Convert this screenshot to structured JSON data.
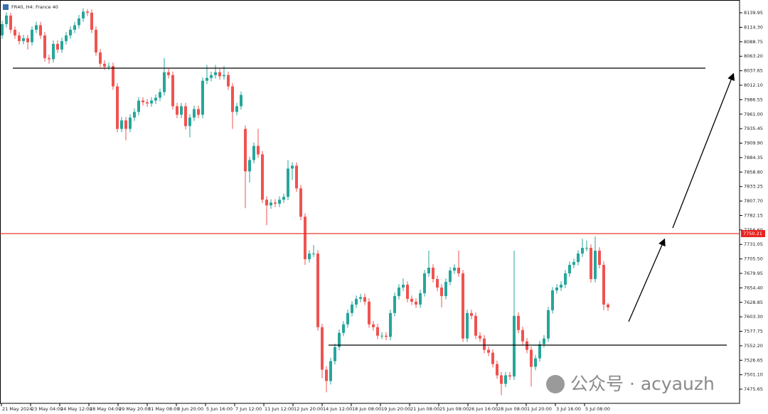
{
  "chart_data": {
    "type": "candlestick",
    "title": "FR40, H4:  France 40",
    "watermark": "公众号 · acyauzh",
    "up_color": "#26a69a",
    "down_color": "#ef5350",
    "ylim": [
      7450.58,
      8162.51
    ],
    "yticks": [
      8139.95,
      {
        "value": 8114.3,
        "label": "8114.30"
      },
      8088.75,
      {
        "value": 8063.2,
        "label": "8063.20"
      },
      8037.65,
      {
        "value": 8012.1,
        "label": "8012.10"
      },
      7986.55,
      {
        "value": 7961.0,
        "label": "7961.00"
      },
      7935.45,
      {
        "value": 7909.9,
        "label": "7909.90"
      },
      7884.35,
      {
        "value": 7858.8,
        "label": "7858.80"
      },
      7833.25,
      {
        "value": 7807.7,
        "label": "7807.70"
      },
      7782.15,
      {
        "value": 7756.6,
        "label": "7756.60"
      },
      7731.05,
      {
        "value": 7705.5,
        "label": "7705.50"
      },
      7679.95,
      {
        "value": 7654.4,
        "label": "7654.40"
      },
      7628.85,
      {
        "value": 7603.3,
        "label": "7603.30"
      },
      7577.75,
      {
        "value": 7552.2,
        "label": "7552.20"
      },
      7526.65,
      {
        "value": 7501.1,
        "label": "7501.10"
      },
      7475.65
    ],
    "x_labels": [
      "21 May 2024",
      "23 May 04:00",
      "24 May 12:00",
      "28 May 04:00",
      "29 May 20:00",
      "31 May 08:00",
      "3 Jun 20:00",
      "5 Jun 16:00",
      "7 Jun 12:00",
      "11 Jun 12:00",
      "12 Jun 20:00",
      "14 Jun 12:00",
      "18 Jun 08:00",
      "19 Jun 20:00",
      "21 Jun 08:00",
      "25 Jun 08:00",
      "26 Jun 16:00",
      "28 Jun 08:00",
      "1 Jul 20:00",
      "3 Jul 16:00",
      "5 Jul 08:00"
    ],
    "price_line": {
      "value": 7750.21,
      "color": "#e8231f"
    },
    "levels": [
      {
        "value": 8042.2,
        "color": "#000000"
      },
      {
        "value": 7553.4,
        "color": "#000000"
      }
    ],
    "ohlc": [
      [
        8100,
        8126,
        8094,
        8120
      ],
      [
        8120,
        8141,
        8114,
        8135
      ],
      [
        8135,
        8140,
        8104,
        8110
      ],
      [
        8110,
        8116,
        8094,
        8100
      ],
      [
        8100,
        8106,
        8084,
        8090
      ],
      [
        8090,
        8101,
        8084,
        8095
      ],
      [
        8095,
        8101,
        8075,
        8088
      ],
      [
        8088,
        8116,
        8082,
        8110
      ],
      [
        8110,
        8124,
        8104,
        8118
      ],
      [
        8118,
        8124,
        8094,
        8100
      ],
      [
        8100,
        8106,
        8054,
        8060
      ],
      [
        8060,
        8066,
        8050,
        8058
      ],
      [
        8058,
        8091,
        8052,
        8085
      ],
      [
        8085,
        8091,
        8069,
        8075
      ],
      [
        8075,
        8096,
        8069,
        8090
      ],
      [
        8090,
        8106,
        8084,
        8100
      ],
      [
        8100,
        8116,
        8094,
        8110
      ],
      [
        8110,
        8124,
        8104,
        8118
      ],
      [
        8118,
        8136,
        8112,
        8130
      ],
      [
        8130,
        8148,
        8124,
        8142
      ],
      [
        8142,
        8146,
        8134,
        8140
      ],
      [
        8140,
        8146,
        8104,
        8110
      ],
      [
        8110,
        8116,
        8064,
        8070
      ],
      [
        8070,
        8076,
        8044,
        8050
      ],
      [
        8050,
        8056,
        8039,
        8045
      ],
      [
        8045,
        8052,
        8039,
        8046
      ],
      [
        8046,
        8052,
        8004,
        8010
      ],
      [
        8010,
        8016,
        7929,
        7935
      ],
      [
        7935,
        7956,
        7929,
        7950
      ],
      [
        7950,
        7956,
        7915,
        7935
      ],
      [
        7935,
        7961,
        7929,
        7955
      ],
      [
        7955,
        7971,
        7949,
        7965
      ],
      [
        7965,
        7991,
        7959,
        7985
      ],
      [
        7985,
        7991,
        7976,
        7982
      ],
      [
        7982,
        7988,
        7974,
        7980
      ],
      [
        7980,
        7991,
        7974,
        7985
      ],
      [
        7985,
        7996,
        7979,
        7990
      ],
      [
        7990,
        8006,
        7984,
        8000
      ],
      [
        8000,
        8060,
        7994,
        8035
      ],
      [
        8035,
        8041,
        8024,
        8030
      ],
      [
        8030,
        8036,
        7969,
        7975
      ],
      [
        7975,
        7981,
        7954,
        7960
      ],
      [
        7960,
        7981,
        7954,
        7975
      ],
      [
        7975,
        7981,
        7934,
        7940
      ],
      [
        7940,
        7961,
        7920,
        7955
      ],
      [
        7955,
        7976,
        7949,
        7970
      ],
      [
        7970,
        7976,
        7954,
        7960
      ],
      [
        7960,
        8026,
        7954,
        8020
      ],
      [
        8020,
        8048,
        8014,
        8025
      ],
      [
        8025,
        8036,
        8019,
        8030
      ],
      [
        8030,
        8048,
        8024,
        8035
      ],
      [
        8035,
        8041,
        8022,
        8028
      ],
      [
        8028,
        8046,
        8022,
        8030
      ],
      [
        8030,
        8036,
        8004,
        8010
      ],
      [
        8010,
        8016,
        7935,
        7965
      ],
      [
        7965,
        7981,
        7959,
        7975
      ],
      [
        7975,
        8001,
        7969,
        7995
      ],
      [
        7935,
        7941,
        7795,
        7860
      ],
      [
        7860,
        7886,
        7840,
        7880
      ],
      [
        7880,
        7911,
        7874,
        7905
      ],
      [
        7905,
        7935,
        7884,
        7890
      ],
      [
        7890,
        7896,
        7804,
        7810
      ],
      [
        7810,
        7816,
        7765,
        7800
      ],
      [
        7800,
        7811,
        7794,
        7805
      ],
      [
        7805,
        7811,
        7797,
        7803
      ],
      [
        7803,
        7816,
        7797,
        7810
      ],
      [
        7810,
        7821,
        7804,
        7815
      ],
      [
        7815,
        7880,
        7809,
        7865
      ],
      [
        7865,
        7876,
        7845,
        7870
      ],
      [
        7870,
        7876,
        7824,
        7830
      ],
      [
        7830,
        7836,
        7774,
        7780
      ],
      [
        7780,
        7786,
        7695,
        7705
      ],
      [
        7705,
        7721,
        7699,
        7715
      ],
      [
        7715,
        7730,
        7709,
        7715
      ],
      [
        7715,
        7721,
        7579,
        7585
      ],
      [
        7585,
        7591,
        7495,
        7510
      ],
      [
        7510,
        7516,
        7470,
        7490
      ],
      [
        7490,
        7531,
        7484,
        7525
      ],
      [
        7525,
        7556,
        7519,
        7550
      ],
      [
        7550,
        7581,
        7544,
        7575
      ],
      [
        7575,
        7596,
        7569,
        7590
      ],
      [
        7590,
        7616,
        7584,
        7610
      ],
      [
        7610,
        7631,
        7604,
        7625
      ],
      [
        7625,
        7641,
        7619,
        7635
      ],
      [
        7635,
        7644,
        7629,
        7638
      ],
      [
        7638,
        7644,
        7624,
        7630
      ],
      [
        7630,
        7636,
        7584,
        7590
      ],
      [
        7590,
        7596,
        7579,
        7585
      ],
      [
        7585,
        7591,
        7564,
        7570
      ],
      [
        7570,
        7576,
        7564,
        7570
      ],
      [
        7570,
        7576,
        7562,
        7568
      ],
      [
        7568,
        7616,
        7562,
        7610
      ],
      [
        7610,
        7646,
        7604,
        7640
      ],
      [
        7640,
        7661,
        7634,
        7655
      ],
      [
        7655,
        7671,
        7649,
        7660
      ],
      [
        7660,
        7666,
        7629,
        7635
      ],
      [
        7635,
        7641,
        7624,
        7630
      ],
      [
        7630,
        7636,
        7619,
        7625
      ],
      [
        7625,
        7651,
        7619,
        7645
      ],
      [
        7645,
        7686,
        7639,
        7680
      ],
      [
        7680,
        7720,
        7674,
        7690
      ],
      [
        7690,
        7696,
        7664,
        7670
      ],
      [
        7670,
        7676,
        7649,
        7655
      ],
      [
        7655,
        7661,
        7620,
        7640
      ],
      [
        7640,
        7671,
        7634,
        7665
      ],
      [
        7665,
        7691,
        7659,
        7685
      ],
      [
        7685,
        7696,
        7679,
        7690
      ],
      [
        7690,
        7720,
        7674,
        7680
      ],
      [
        7680,
        7686,
        7559,
        7565
      ],
      [
        7565,
        7616,
        7559,
        7610
      ],
      [
        7610,
        7616,
        7599,
        7605
      ],
      [
        7605,
        7611,
        7564,
        7570
      ],
      [
        7570,
        7576,
        7559,
        7565
      ],
      [
        7565,
        7571,
        7539,
        7545
      ],
      [
        7545,
        7551,
        7534,
        7540
      ],
      [
        7540,
        7546,
        7514,
        7520
      ],
      [
        7520,
        7526,
        7494,
        7500
      ],
      [
        7500,
        7506,
        7465,
        7485
      ],
      [
        7485,
        7506,
        7479,
        7500
      ],
      [
        7500,
        7506,
        7492,
        7498
      ],
      [
        7498,
        7720,
        7492,
        7605
      ],
      [
        7605,
        7611,
        7574,
        7580
      ],
      [
        7580,
        7586,
        7554,
        7560
      ],
      [
        7560,
        7566,
        7539,
        7545
      ],
      [
        7545,
        7551,
        7480,
        7515
      ],
      [
        7515,
        7536,
        7509,
        7530
      ],
      [
        7530,
        7561,
        7524,
        7555
      ],
      [
        7555,
        7571,
        7549,
        7565
      ],
      [
        7565,
        7621,
        7559,
        7615
      ],
      [
        7615,
        7656,
        7609,
        7650
      ],
      [
        7650,
        7661,
        7644,
        7655
      ],
      [
        7655,
        7666,
        7649,
        7660
      ],
      [
        7660,
        7686,
        7654,
        7680
      ],
      [
        7680,
        7701,
        7674,
        7695
      ],
      [
        7695,
        7706,
        7689,
        7700
      ],
      [
        7700,
        7721,
        7694,
        7715
      ],
      [
        7715,
        7741,
        7709,
        7725
      ],
      [
        7725,
        7738,
        7719,
        7725
      ],
      [
        7725,
        7731,
        7664,
        7670
      ],
      [
        7670,
        7745,
        7664,
        7720
      ],
      [
        7720,
        7726,
        7689,
        7695
      ],
      [
        7695,
        7701,
        7615,
        7625
      ],
      [
        7625,
        7628,
        7614,
        7620
      ]
    ]
  }
}
